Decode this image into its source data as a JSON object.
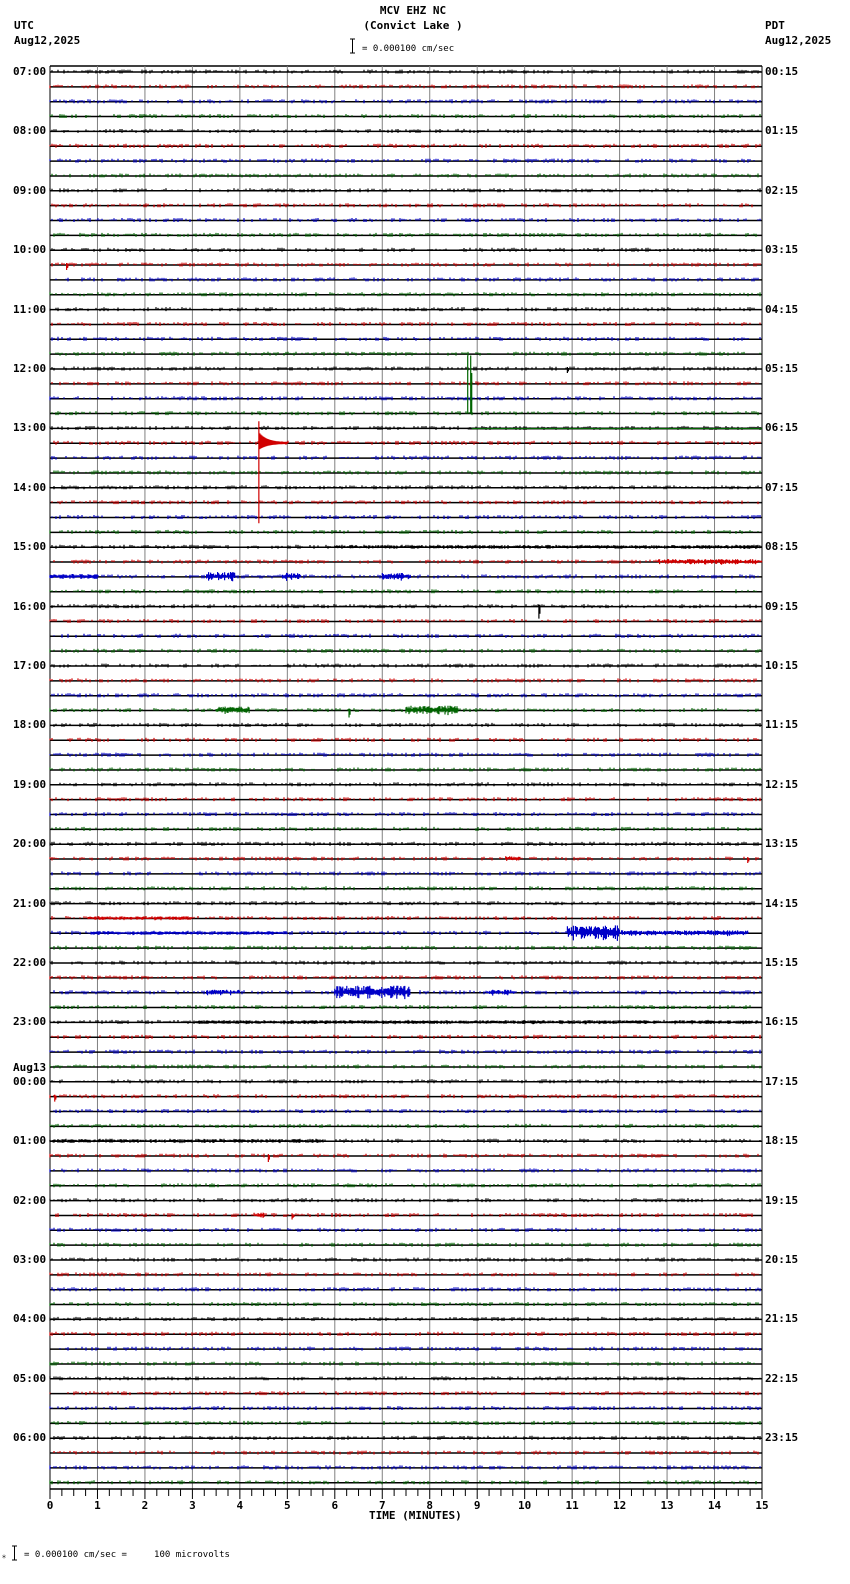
{
  "header": {
    "title": "MCV EHZ NC",
    "subtitle": "(Convict Lake )",
    "scale_text": "= 0.000100 cm/sec",
    "left_tz": "UTC",
    "left_date": "Aug12,2025",
    "right_tz": "PDT",
    "right_date": "Aug12,2025"
  },
  "footer": {
    "scale_text": "= 0.000100 cm/sec =     100 microvolts",
    "prefix": "⁎"
  },
  "colors": {
    "trace_cycle": [
      "#000000",
      "#d00000",
      "#0000c8",
      "#006400"
    ],
    "grid": "#808080",
    "baseline": "#000000"
  },
  "chart_data": {
    "type": "line",
    "title": "MCV EHZ NC (Convict Lake )",
    "xlabel": "TIME (MINUTES)",
    "ylabel": "",
    "xlim": [
      0,
      15
    ],
    "x_ticks": [
      "0",
      "1",
      "2",
      "3",
      "4",
      "5",
      "6",
      "7",
      "8",
      "9",
      "10",
      "11",
      "12",
      "13",
      "14",
      "15"
    ],
    "rows_per_hour": 4,
    "hours": 24,
    "left_labels": [
      {
        "row": 0,
        "text": "07:00"
      },
      {
        "row": 4,
        "text": "08:00"
      },
      {
        "row": 8,
        "text": "09:00"
      },
      {
        "row": 12,
        "text": "10:00"
      },
      {
        "row": 16,
        "text": "11:00"
      },
      {
        "row": 20,
        "text": "12:00"
      },
      {
        "row": 24,
        "text": "13:00"
      },
      {
        "row": 28,
        "text": "14:00"
      },
      {
        "row": 32,
        "text": "15:00"
      },
      {
        "row": 36,
        "text": "16:00"
      },
      {
        "row": 40,
        "text": "17:00"
      },
      {
        "row": 44,
        "text": "18:00"
      },
      {
        "row": 48,
        "text": "19:00"
      },
      {
        "row": 52,
        "text": "20:00"
      },
      {
        "row": 56,
        "text": "21:00"
      },
      {
        "row": 60,
        "text": "22:00"
      },
      {
        "row": 64,
        "text": "23:00"
      },
      {
        "row": 68,
        "text": "00:00",
        "date": "Aug13"
      },
      {
        "row": 72,
        "text": "01:00"
      },
      {
        "row": 76,
        "text": "02:00"
      },
      {
        "row": 80,
        "text": "03:00"
      },
      {
        "row": 84,
        "text": "04:00"
      },
      {
        "row": 88,
        "text": "05:00"
      },
      {
        "row": 92,
        "text": "06:00"
      }
    ],
    "right_labels": [
      "00:15",
      "01:15",
      "02:15",
      "03:15",
      "04:15",
      "05:15",
      "06:15",
      "07:15",
      "08:15",
      "09:15",
      "10:15",
      "11:15",
      "12:15",
      "13:15",
      "14:15",
      "15:15",
      "16:15",
      "17:15",
      "18:15",
      "19:15",
      "20:15",
      "21:15",
      "22:15",
      "23:15"
    ],
    "events": [
      {
        "row": 13,
        "start_min": 0.35,
        "end_min": 0.45,
        "amp": 5,
        "type": "spike"
      },
      {
        "row": 20,
        "start_min": 10.9,
        "end_min": 11.0,
        "amp": 4,
        "type": "spike"
      },
      {
        "row": 23,
        "start_min": 8.8,
        "end_min": 8.95,
        "amp": 58,
        "type": "step"
      },
      {
        "row": 25,
        "start_min": 4.4,
        "end_min": 5.0,
        "amp": 80,
        "type": "quake"
      },
      {
        "row": 32,
        "start_min": 6.0,
        "end_min": 15.0,
        "amp": 2,
        "type": "burst"
      },
      {
        "row": 33,
        "start_min": 12.8,
        "end_min": 15.0,
        "amp": 3,
        "type": "burst"
      },
      {
        "row": 34,
        "start_min": 0.0,
        "end_min": 1.0,
        "amp": 3,
        "type": "burst"
      },
      {
        "row": 34,
        "start_min": 3.3,
        "end_min": 3.9,
        "amp": 5,
        "type": "burst"
      },
      {
        "row": 34,
        "start_min": 4.9,
        "end_min": 5.3,
        "amp": 4,
        "type": "burst"
      },
      {
        "row": 34,
        "start_min": 7.0,
        "end_min": 7.6,
        "amp": 4,
        "type": "burst"
      },
      {
        "row": 36,
        "start_min": 10.3,
        "end_min": 10.4,
        "amp": 12,
        "type": "spike"
      },
      {
        "row": 43,
        "start_min": 3.5,
        "end_min": 4.2,
        "amp": 4,
        "type": "burst"
      },
      {
        "row": 43,
        "start_min": 6.3,
        "end_min": 6.4,
        "amp": 7,
        "type": "spike"
      },
      {
        "row": 43,
        "start_min": 7.5,
        "end_min": 8.6,
        "amp": 5,
        "type": "burst"
      },
      {
        "row": 53,
        "start_min": 9.6,
        "end_min": 9.9,
        "amp": 3,
        "type": "burst"
      },
      {
        "row": 53,
        "start_min": 14.7,
        "end_min": 14.8,
        "amp": 4,
        "type": "spike"
      },
      {
        "row": 57,
        "start_min": 0.8,
        "end_min": 3.0,
        "amp": 2,
        "type": "burst"
      },
      {
        "row": 58,
        "start_min": 0.8,
        "end_min": 5.0,
        "amp": 2,
        "type": "burst"
      },
      {
        "row": 58,
        "start_min": 10.9,
        "end_min": 12.0,
        "amp": 8,
        "type": "burst"
      },
      {
        "row": 58,
        "start_min": 12.0,
        "end_min": 14.7,
        "amp": 3,
        "type": "burst"
      },
      {
        "row": 62,
        "start_min": 3.3,
        "end_min": 4.0,
        "amp": 3,
        "type": "burst"
      },
      {
        "row": 62,
        "start_min": 6.0,
        "end_min": 7.6,
        "amp": 7,
        "type": "burst"
      },
      {
        "row": 62,
        "start_min": 9.2,
        "end_min": 9.8,
        "amp": 3,
        "type": "burst"
      },
      {
        "row": 64,
        "start_min": 3.1,
        "end_min": 15.0,
        "amp": 2,
        "type": "burst"
      },
      {
        "row": 69,
        "start_min": 0.1,
        "end_min": 0.2,
        "amp": 5,
        "type": "spike"
      },
      {
        "row": 72,
        "start_min": 0.0,
        "end_min": 5.8,
        "amp": 2,
        "type": "burst"
      },
      {
        "row": 73,
        "start_min": 4.6,
        "end_min": 4.7,
        "amp": 6,
        "type": "spike"
      },
      {
        "row": 77,
        "start_min": 4.3,
        "end_min": 4.5,
        "amp": 3,
        "type": "burst"
      },
      {
        "row": 77,
        "start_min": 5.1,
        "end_min": 5.2,
        "amp": 4,
        "type": "spike"
      }
    ]
  }
}
